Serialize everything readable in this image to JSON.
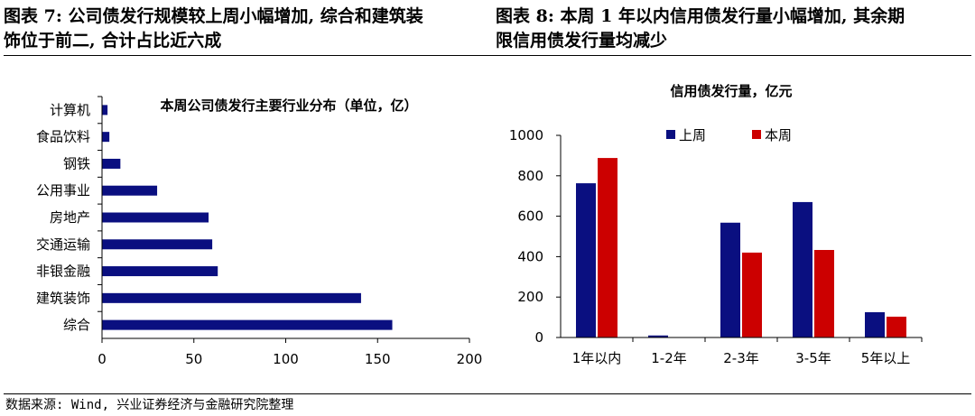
{
  "captions": {
    "left_line1": "图表 7: 公司债发行规模较上周小幅增加, 综合和建筑装",
    "left_line2": "饰位于前二, 合计占比近六成",
    "right_line1": "图表 8: 本周 1 年以内信用债发行量小幅增加, 其余期",
    "right_line2": "限信用债发行量均减少"
  },
  "source": "数据来源: Wind, 兴业证券经济与金融研究院整理",
  "colors": {
    "navy": "#0a0f80",
    "red": "#cc0000"
  },
  "chart_data": [
    {
      "type": "bar",
      "orientation": "horizontal",
      "title": "本周公司债发行主要行业分布（单位，亿）",
      "categories": [
        "计算机",
        "食品饮料",
        "钢铁",
        "公用事业",
        "房地产",
        "交通运输",
        "非银金融",
        "建筑装饰",
        "综合"
      ],
      "values": [
        3,
        4,
        10,
        30,
        58,
        60,
        63,
        141,
        158
      ],
      "xlim": [
        0,
        200
      ],
      "xticks": [
        "0",
        "50",
        "100",
        "150",
        "200"
      ],
      "grid": false
    },
    {
      "type": "bar",
      "title": "信用债发行量，亿元",
      "categories": [
        "1年以内",
        "1-2年",
        "2-3年",
        "3-5年",
        "5年以上"
      ],
      "series": [
        {
          "name": "上周",
          "values": [
            763,
            10,
            568,
            670,
            125
          ]
        },
        {
          "name": "本周",
          "values": [
            888,
            0,
            420,
            433,
            103
          ]
        }
      ],
      "ylim": [
        0,
        1000
      ],
      "yticks": [
        "0",
        "200",
        "400",
        "600",
        "800",
        "1000"
      ],
      "legend": "top",
      "grid": false
    }
  ]
}
